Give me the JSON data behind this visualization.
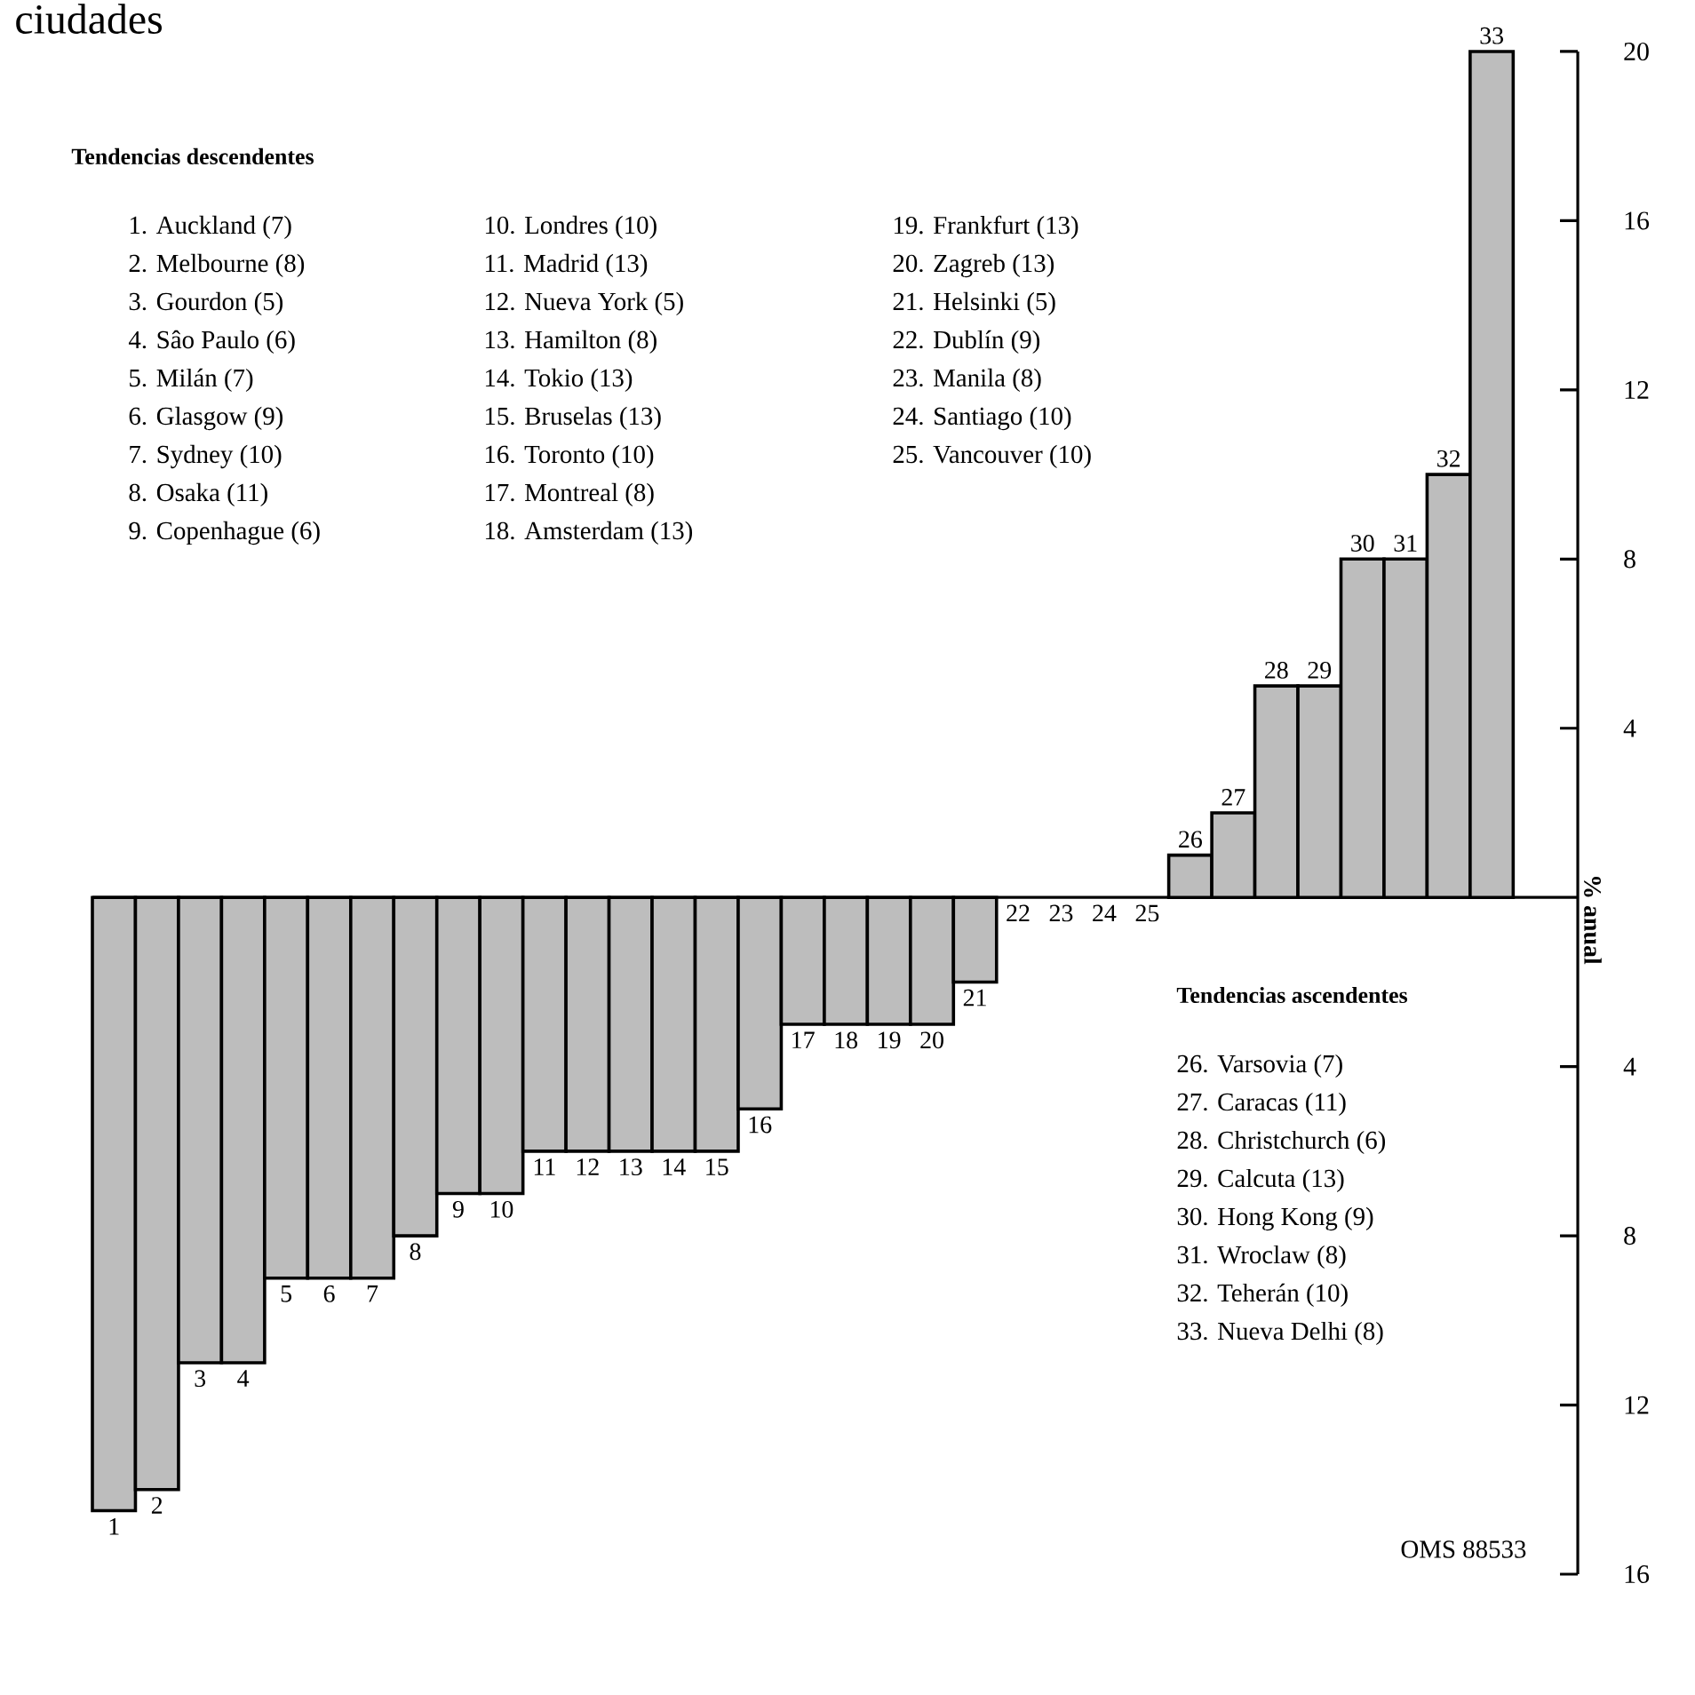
{
  "chart_data": {
    "type": "bar",
    "title": "ciudades",
    "ylabel": "% anual",
    "categories": [
      "1",
      "2",
      "3",
      "4",
      "5",
      "6",
      "7",
      "8",
      "9",
      "10",
      "11",
      "12",
      "13",
      "14",
      "15",
      "16",
      "17",
      "18",
      "19",
      "20",
      "21",
      "22",
      "23",
      "24",
      "25",
      "26",
      "27",
      "28",
      "29",
      "30",
      "31",
      "32",
      "33"
    ],
    "values": [
      -14.5,
      -14,
      -11,
      -11,
      -9,
      -9,
      -9,
      -8,
      -7,
      -7,
      -6,
      -6,
      -6,
      -6,
      -6,
      -5,
      -3,
      -3,
      -3,
      -3,
      -2,
      0,
      0,
      0,
      0,
      1,
      2,
      5,
      5,
      8,
      8,
      10,
      20
    ],
    "color": "#bdbdbd",
    "ylim": [
      -16,
      20
    ],
    "yticks": [
      {
        "value": -16,
        "label": "16"
      },
      {
        "value": -12,
        "label": "12"
      },
      {
        "value": -8,
        "label": "8"
      },
      {
        "value": -4,
        "label": "4"
      },
      4,
      8,
      12,
      16,
      20
    ],
    "annotations": [
      "**Tendencias descendentes**",
      "1. Auckland (7)",
      "2. Melbourne (8)",
      "3. Gourdon (5)",
      "4. Sâo Paulo (6)",
      "5. Milán (7)",
      "6. Glasgow (9)",
      "7. Sydney (10)",
      "8. Osaka (11)",
      "9. Copenhague (6)",
      "10. Londres (10)",
      "11. Madrid (13)",
      "12. Nueva York (5)",
      "13. Hamilton (8)",
      "14. Tokio (13)",
      "15. Bruselas (13)",
      "16. Toronto (10)",
      "17. Montreal (8)",
      "18. Amsterdam (13)",
      "19. Frankfurt (13)",
      "20. Zagreb (13)",
      "21. Helsinki (5)",
      "22. Dublín (9)",
      "23. Manila (8)",
      "24. Santiago (10)",
      "25. Vancouver (10)",
      "**Tendencias ascendentes**",
      "26. Varsovia (7)",
      "27. Caracas (11)",
      "28. Christchurch (6)",
      "29. Calcuta (13)",
      "30. Hong Kong (9)",
      "31. Wroclaw (8)",
      "32. Teherán (10)",
      "33. Nueva Delhi (8)",
      "OMS 88533"
    ]
  }
}
